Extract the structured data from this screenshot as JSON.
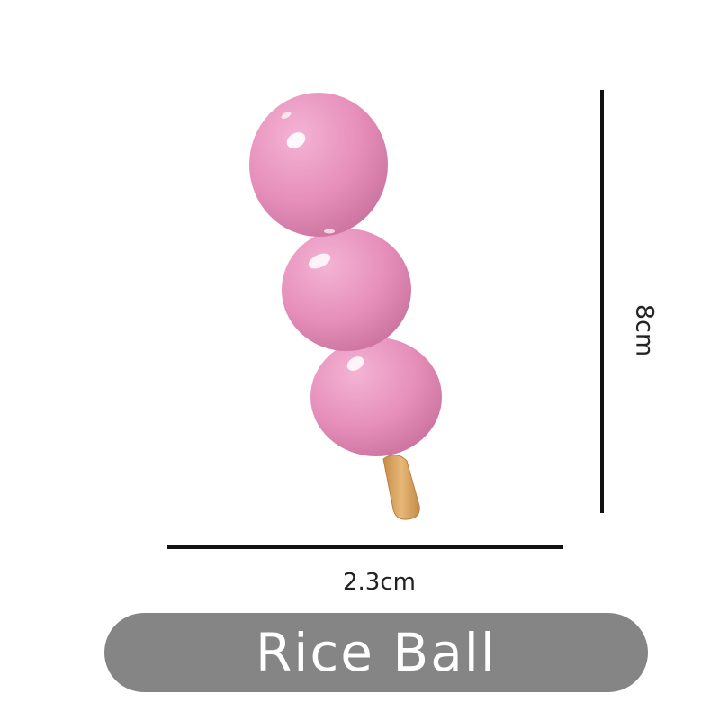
{
  "product": {
    "title": "Rice Ball",
    "dimensions": {
      "height_label": "8cm",
      "width_label": "2.3cm"
    }
  },
  "colors": {
    "ball_pink": "#e48db7",
    "stick_tan": "#dca765",
    "pill_gray": "#858585",
    "dimension_line": "#111111"
  }
}
